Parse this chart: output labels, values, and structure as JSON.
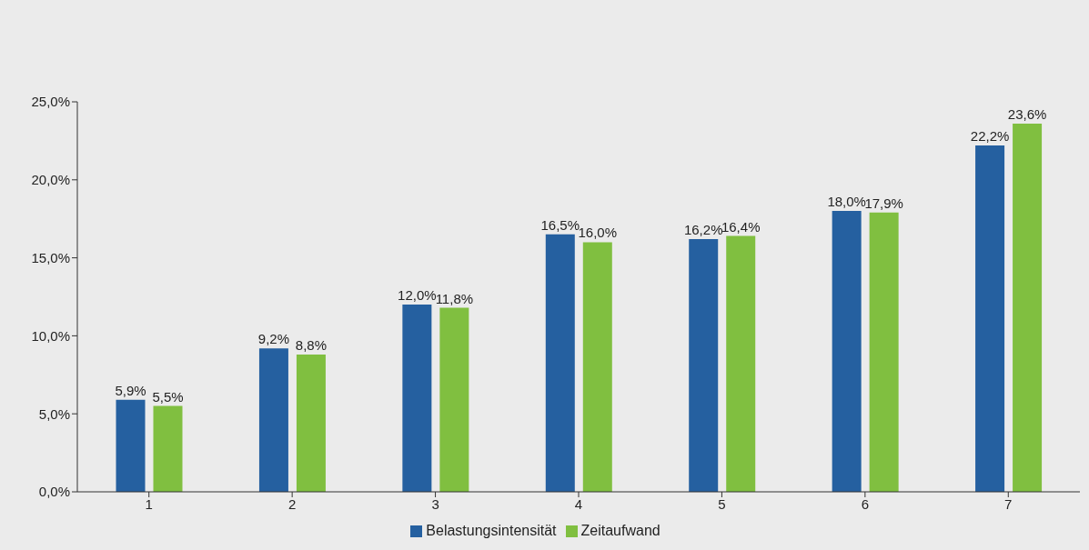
{
  "chart_data": {
    "type": "bar",
    "categories": [
      "1",
      "2",
      "3",
      "4",
      "5",
      "6",
      "7"
    ],
    "series": [
      {
        "name": "Belastungsintensität",
        "color": "#2560a0",
        "values": [
          5.9,
          9.2,
          12.0,
          16.5,
          16.2,
          18.0,
          22.2
        ],
        "value_labels": [
          "5,9%",
          "9,2%",
          "12,0%",
          "16,5%",
          "16,2%",
          "18,0%",
          "22,2%"
        ]
      },
      {
        "name": "Zeitaufwand",
        "color": "#80bf40",
        "values": [
          5.5,
          8.8,
          11.8,
          16.0,
          16.4,
          17.9,
          23.6
        ],
        "value_labels": [
          "5,5%",
          "8,8%",
          "11,8%",
          "16,0%",
          "16,4%",
          "17,9%",
          "23,6%"
        ]
      }
    ],
    "ylim": [
      0,
      25
    ],
    "yticks": [
      {
        "value": 0,
        "label": "0,0%"
      },
      {
        "value": 5,
        "label": "5,0%"
      },
      {
        "value": 10,
        "label": "10,0%"
      },
      {
        "value": 15,
        "label": "15,0%"
      },
      {
        "value": 20,
        "label": "20,0%"
      },
      {
        "value": 25,
        "label": "25,0%"
      }
    ],
    "grid": false,
    "legend": "bottom"
  }
}
